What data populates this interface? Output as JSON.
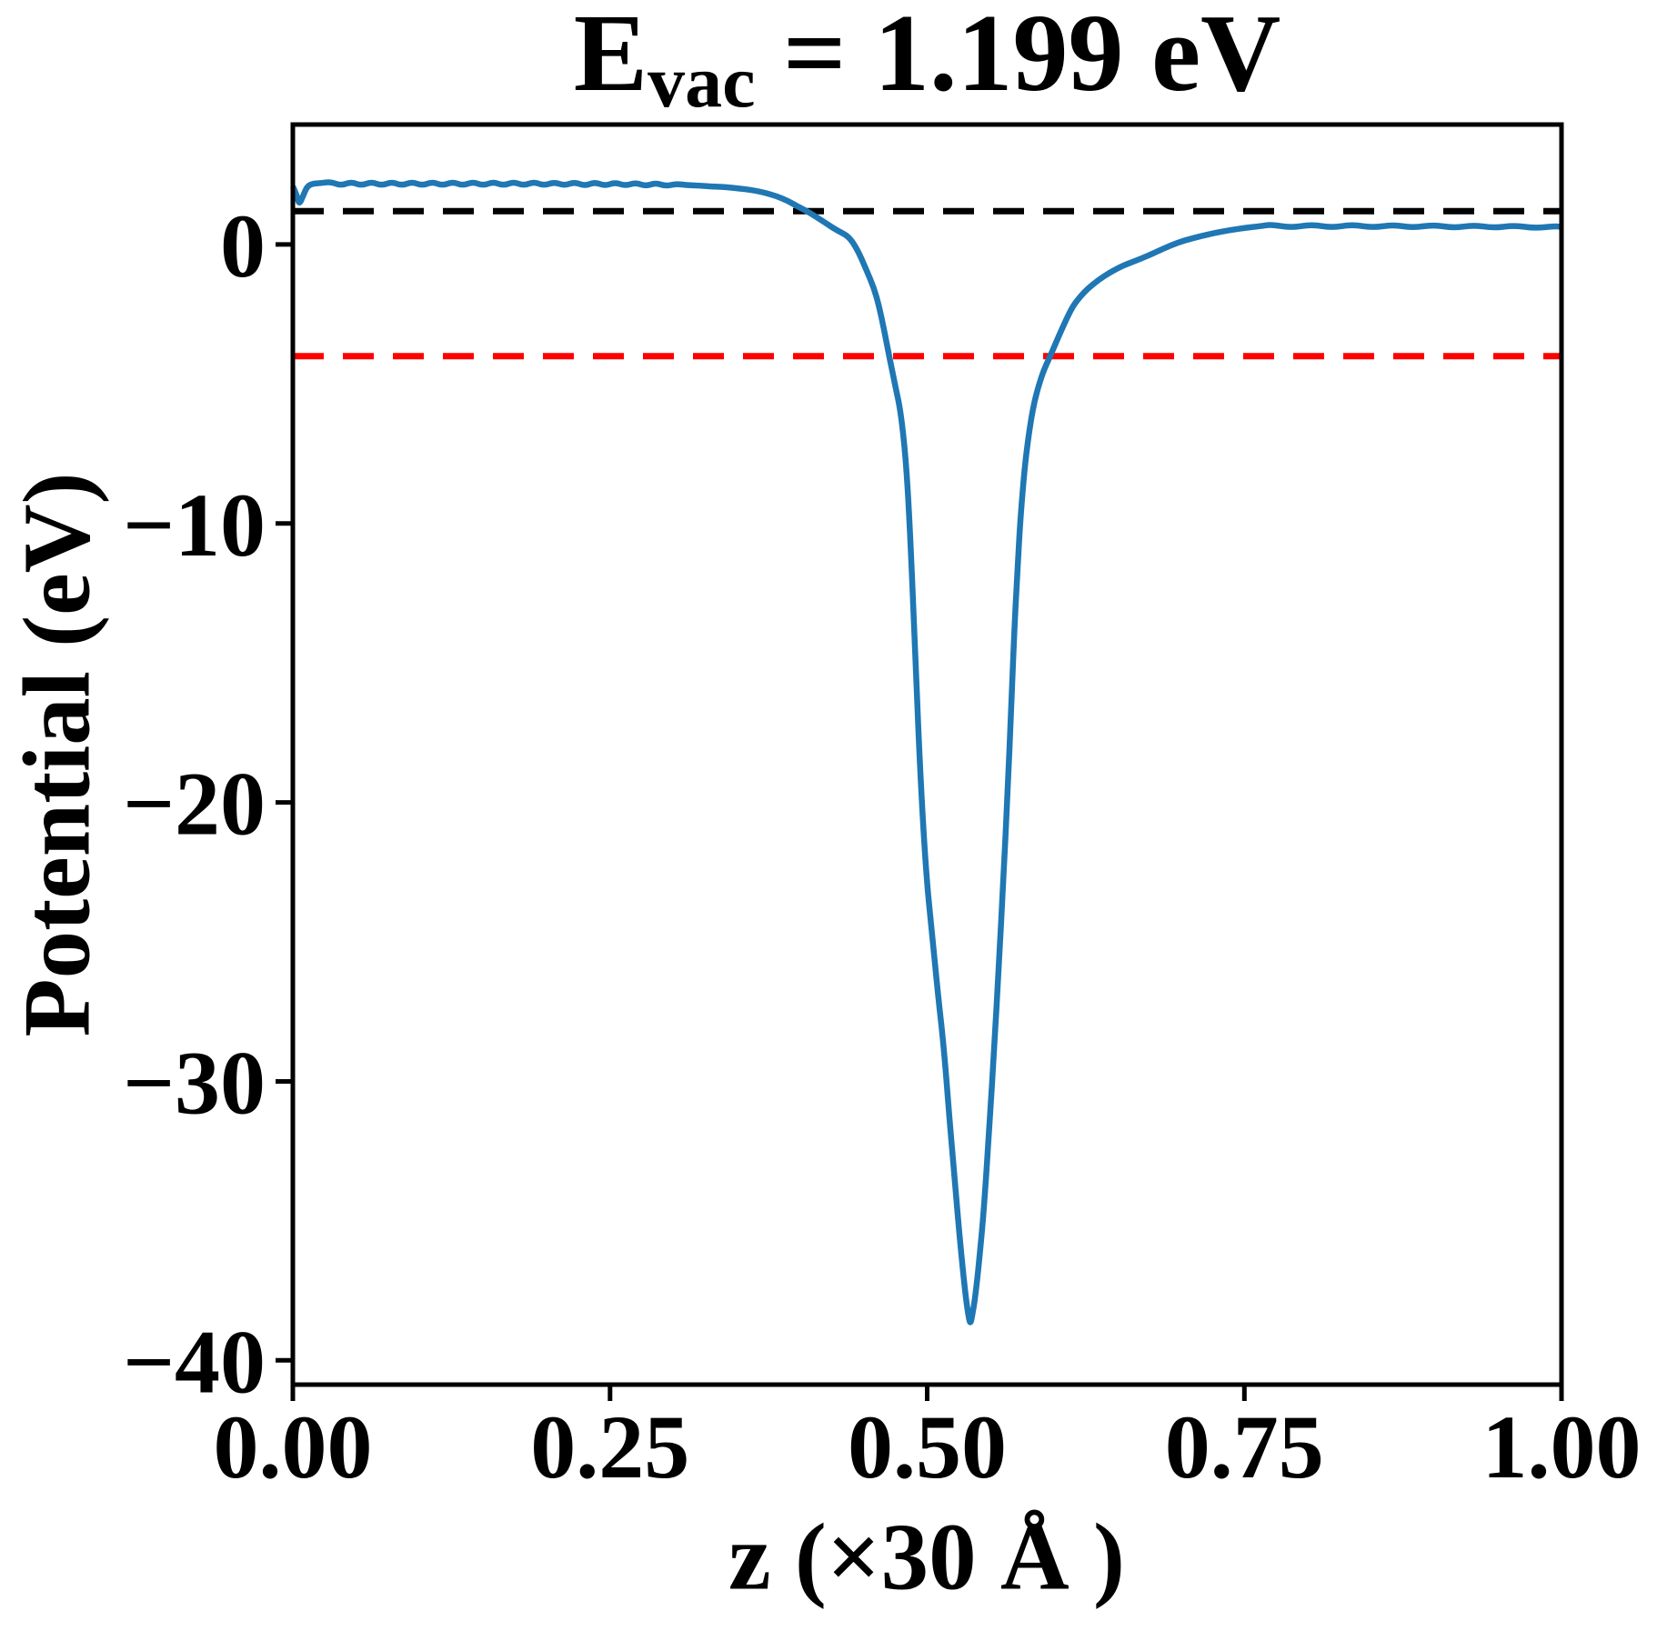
{
  "figure": {
    "title": {
      "base": "E",
      "sub": "vac",
      "rest": " = 1.199 eV"
    },
    "xlabel": "z (×30 Å )",
    "ylabel": "Potential (eV)"
  },
  "chart_data": {
    "type": "line",
    "title": "E_vac = 1.199 eV",
    "xlabel": "z (×30 Å )",
    "ylabel": "Potential (eV)",
    "xlim": [
      0.0,
      1.0
    ],
    "ylim": [
      -40.87,
      4.3
    ],
    "grid": false,
    "legend": null,
    "xticks": {
      "values": [
        0.0,
        0.25,
        0.5,
        0.75,
        1.0
      ],
      "labels": [
        "0.00",
        "0.25",
        "0.50",
        "0.75",
        "1.00"
      ]
    },
    "yticks": {
      "values": [
        0,
        -10,
        -20,
        -30,
        -40
      ],
      "labels": [
        "0",
        "−10",
        "−20",
        "−30",
        "−40"
      ]
    },
    "annotations": {
      "E_vac_eV": 1.199
    },
    "hlines": [
      {
        "name": "vacuum-level-line",
        "y": 1.199,
        "color": "#000000",
        "linestyle": "dashed"
      },
      {
        "name": "fermi-level-line",
        "y": -4.0,
        "color": "#ff0000",
        "linestyle": "dashed"
      }
    ],
    "series": [
      {
        "name": "planar-averaged-potential",
        "color": "#1f77b4",
        "linewidth": 6.5,
        "points": [
          [
            0.0,
            2.08
          ],
          [
            0.003,
            1.78
          ],
          [
            0.005,
            1.42
          ],
          [
            0.008,
            1.74
          ],
          [
            0.011,
            2.06
          ],
          [
            0.015,
            2.18
          ],
          [
            0.022,
            2.2
          ],
          [
            0.03,
            2.25
          ],
          [
            0.038,
            2.11
          ],
          [
            0.046,
            2.25
          ],
          [
            0.054,
            2.11
          ],
          [
            0.062,
            2.25
          ],
          [
            0.07,
            2.11
          ],
          [
            0.078,
            2.25
          ],
          [
            0.086,
            2.11
          ],
          [
            0.094,
            2.25
          ],
          [
            0.102,
            2.11
          ],
          [
            0.11,
            2.25
          ],
          [
            0.118,
            2.11
          ],
          [
            0.126,
            2.25
          ],
          [
            0.134,
            2.11
          ],
          [
            0.142,
            2.25
          ],
          [
            0.15,
            2.11
          ],
          [
            0.158,
            2.25
          ],
          [
            0.166,
            2.11
          ],
          [
            0.174,
            2.25
          ],
          [
            0.182,
            2.11
          ],
          [
            0.19,
            2.25
          ],
          [
            0.198,
            2.11
          ],
          [
            0.206,
            2.24
          ],
          [
            0.214,
            2.11
          ],
          [
            0.222,
            2.24
          ],
          [
            0.23,
            2.1
          ],
          [
            0.238,
            2.24
          ],
          [
            0.246,
            2.1
          ],
          [
            0.254,
            2.23
          ],
          [
            0.262,
            2.1
          ],
          [
            0.27,
            2.22
          ],
          [
            0.278,
            2.09
          ],
          [
            0.286,
            2.21
          ],
          [
            0.294,
            2.09
          ],
          [
            0.302,
            2.18
          ],
          [
            0.31,
            2.13
          ],
          [
            0.32,
            2.11
          ],
          [
            0.33,
            2.08
          ],
          [
            0.34,
            2.06
          ],
          [
            0.352,
            2.01
          ],
          [
            0.362,
            1.95
          ],
          [
            0.372,
            1.86
          ],
          [
            0.381,
            1.74
          ],
          [
            0.39,
            1.57
          ],
          [
            0.398,
            1.36
          ],
          [
            0.405,
            1.2
          ],
          [
            0.412,
            1.01
          ],
          [
            0.42,
            0.77
          ],
          [
            0.429,
            0.5
          ],
          [
            0.438,
            0.3
          ],
          [
            0.445,
            -0.18
          ],
          [
            0.452,
            -0.9
          ],
          [
            0.458,
            -1.55
          ],
          [
            0.462,
            -2.2
          ],
          [
            0.466,
            -3.05
          ],
          [
            0.47,
            -4.0
          ],
          [
            0.475,
            -5.1
          ],
          [
            0.479,
            -5.95
          ],
          [
            0.483,
            -7.6
          ],
          [
            0.486,
            -9.8
          ],
          [
            0.49,
            -14.0
          ],
          [
            0.494,
            -18.5
          ],
          [
            0.499,
            -22.5
          ],
          [
            0.504,
            -24.8
          ],
          [
            0.5085,
            -26.9
          ],
          [
            0.513,
            -28.7
          ],
          [
            0.5175,
            -31.3
          ],
          [
            0.522,
            -33.7
          ],
          [
            0.526,
            -35.8
          ],
          [
            0.53,
            -37.6
          ],
          [
            0.5325,
            -38.4
          ],
          [
            0.534,
            -38.72
          ],
          [
            0.5355,
            -38.4
          ],
          [
            0.538,
            -37.7
          ],
          [
            0.5415,
            -36.2
          ],
          [
            0.545,
            -34.4
          ],
          [
            0.549,
            -31.6
          ],
          [
            0.553,
            -28.7
          ],
          [
            0.5565,
            -25.8
          ],
          [
            0.56,
            -22.8
          ],
          [
            0.5635,
            -19.5
          ],
          [
            0.566,
            -16.8
          ],
          [
            0.5685,
            -14.0
          ],
          [
            0.571,
            -11.8
          ],
          [
            0.5735,
            -9.8
          ],
          [
            0.577,
            -7.9
          ],
          [
            0.581,
            -6.5
          ],
          [
            0.585,
            -5.5
          ],
          [
            0.591,
            -4.6
          ],
          [
            0.597,
            -4.0
          ],
          [
            0.604,
            -3.25
          ],
          [
            0.61,
            -2.65
          ],
          [
            0.615,
            -2.2
          ],
          [
            0.621,
            -1.85
          ],
          [
            0.627,
            -1.56
          ],
          [
            0.635,
            -1.27
          ],
          [
            0.644,
            -1.0
          ],
          [
            0.655,
            -0.74
          ],
          [
            0.668,
            -0.52
          ],
          [
            0.68,
            -0.28
          ],
          [
            0.692,
            -0.03
          ],
          [
            0.703,
            0.15
          ],
          [
            0.715,
            0.29
          ],
          [
            0.727,
            0.42
          ],
          [
            0.739,
            0.52
          ],
          [
            0.751,
            0.6
          ],
          [
            0.763,
            0.66
          ],
          [
            0.771,
            0.72
          ],
          [
            0.787,
            0.6
          ],
          [
            0.803,
            0.72
          ],
          [
            0.819,
            0.6
          ],
          [
            0.835,
            0.72
          ],
          [
            0.851,
            0.6
          ],
          [
            0.867,
            0.71
          ],
          [
            0.883,
            0.6
          ],
          [
            0.899,
            0.71
          ],
          [
            0.915,
            0.59
          ],
          [
            0.931,
            0.7
          ],
          [
            0.947,
            0.59
          ],
          [
            0.963,
            0.69
          ],
          [
            0.979,
            0.58
          ],
          [
            0.995,
            0.66
          ],
          [
            1.0,
            0.63
          ]
        ]
      }
    ]
  }
}
